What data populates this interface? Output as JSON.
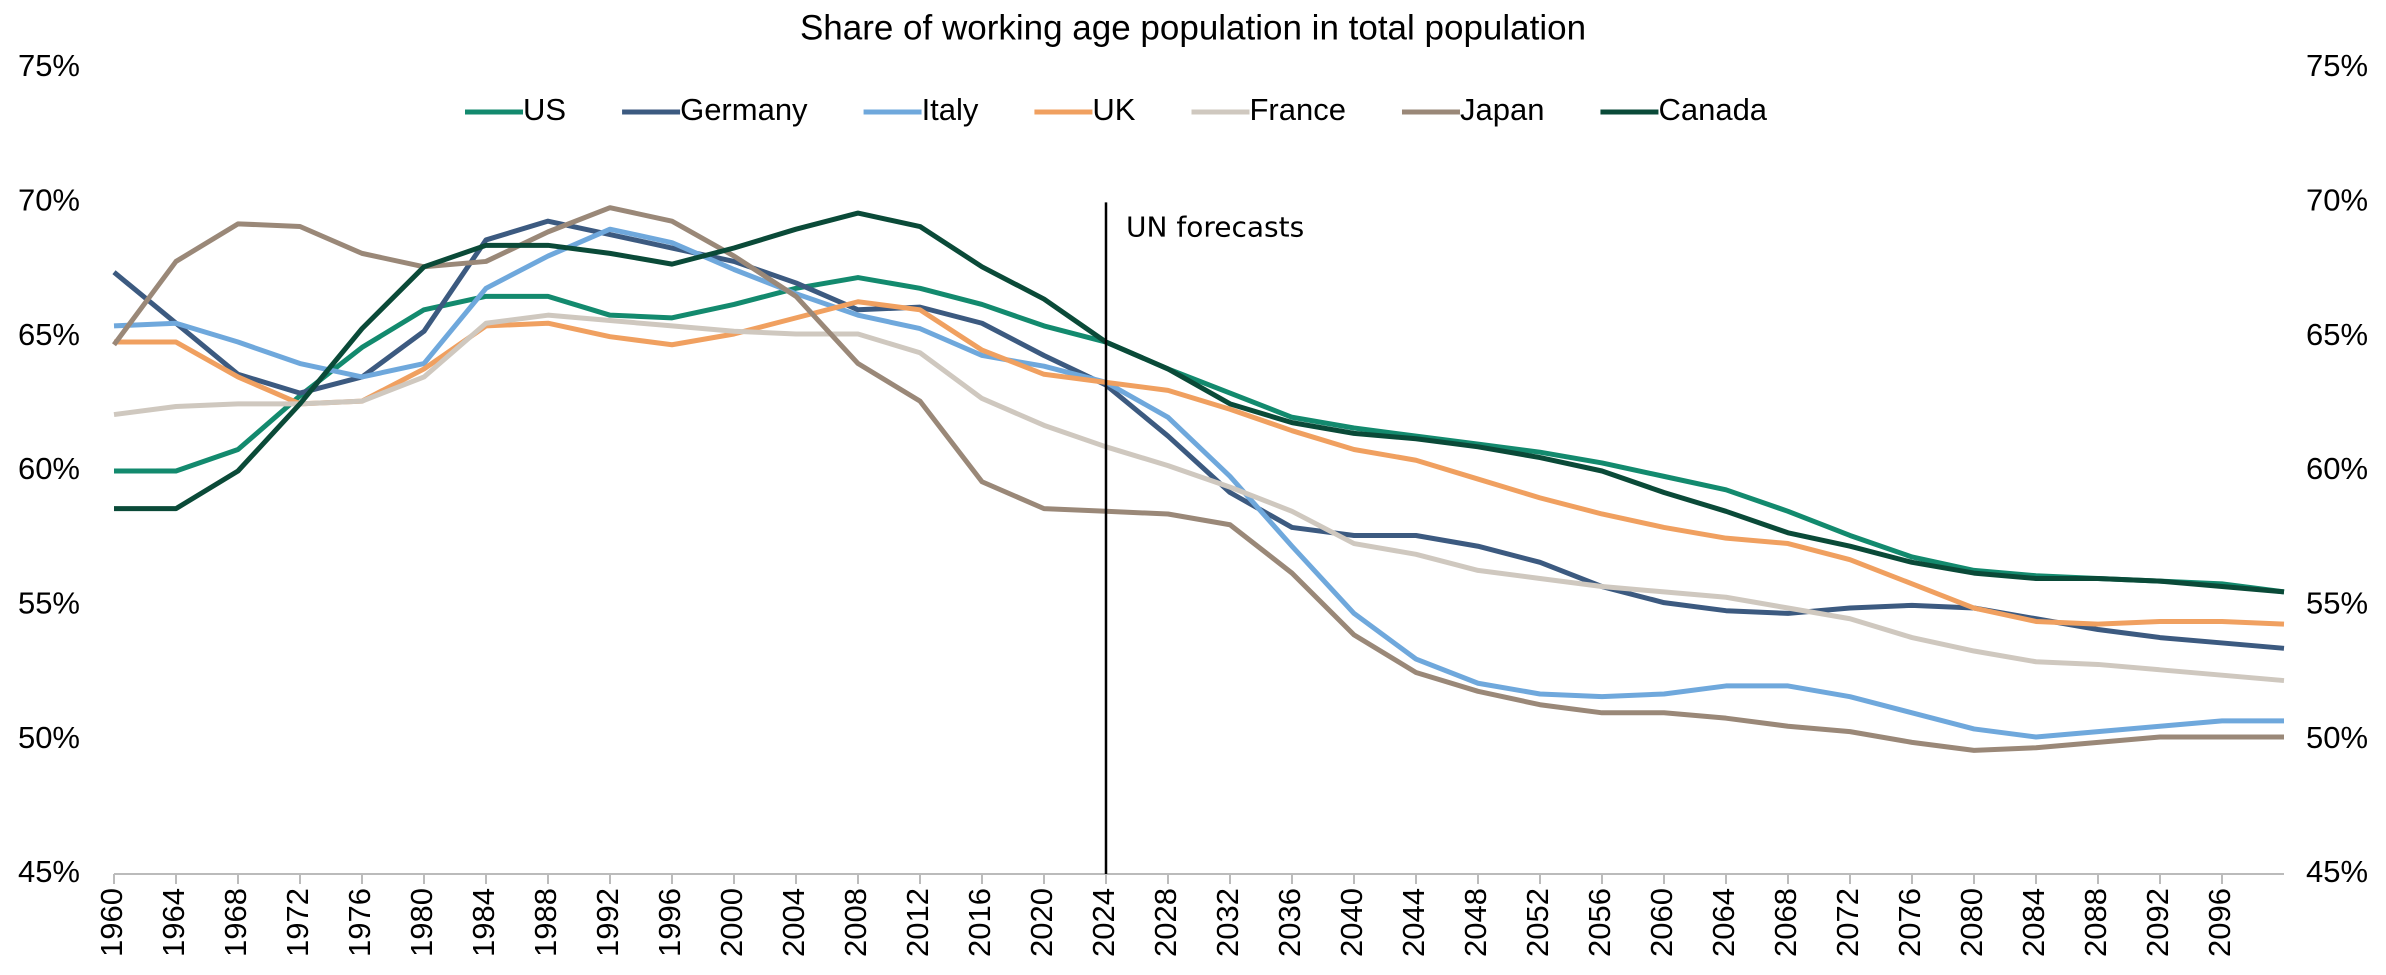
{
  "chart_data": {
    "type": "line",
    "title": "Share of working age population in total population",
    "x": [
      1960,
      1964,
      1968,
      1972,
      1976,
      1980,
      1984,
      1988,
      1992,
      1996,
      2000,
      2004,
      2008,
      2012,
      2016,
      2020,
      2024,
      2028,
      2032,
      2036,
      2040,
      2044,
      2048,
      2052,
      2056,
      2060,
      2064,
      2068,
      2072,
      2076,
      2080,
      2084,
      2088,
      2092,
      2096,
      2100
    ],
    "xlim": [
      1960,
      2100
    ],
    "xticks": [
      1960,
      1964,
      1968,
      1972,
      1976,
      1980,
      1984,
      1988,
      1992,
      1996,
      2000,
      2004,
      2008,
      2012,
      2016,
      2020,
      2024,
      2028,
      2032,
      2036,
      2040,
      2044,
      2048,
      2052,
      2056,
      2060,
      2064,
      2068,
      2072,
      2076,
      2080,
      2084,
      2088,
      2092,
      2096
    ],
    "ylim": [
      45,
      75
    ],
    "yticks": [
      {
        "value": 45,
        "label": "45%"
      },
      {
        "value": 50,
        "label": "50%"
      },
      {
        "value": 55,
        "label": "55%"
      },
      {
        "value": 60,
        "label": "60%"
      },
      {
        "value": 65,
        "label": "65%"
      },
      {
        "value": 70,
        "label": "70%"
      },
      {
        "value": 75,
        "label": "75%"
      }
    ],
    "y2lim": [
      45,
      75
    ],
    "y2ticks": [
      {
        "value": 45,
        "label": "45%"
      },
      {
        "value": 50,
        "label": "50%"
      },
      {
        "value": 55,
        "label": "55%"
      },
      {
        "value": 60,
        "label": "60%"
      },
      {
        "value": 65,
        "label": "65%"
      },
      {
        "value": 70,
        "label": "70%"
      },
      {
        "value": 75,
        "label": "75%"
      }
    ],
    "legend": "top",
    "annotations": [
      {
        "text": "UN forecasts",
        "x": 2024,
        "y": 70
      }
    ],
    "series": [
      {
        "name": "US",
        "color": "#138a6e",
        "values": [
          60.0,
          60.0,
          60.8,
          62.8,
          64.6,
          66.0,
          66.5,
          66.5,
          65.8,
          65.7,
          66.2,
          66.8,
          67.2,
          66.8,
          66.2,
          65.4,
          64.8,
          63.8,
          62.9,
          62.0,
          61.6,
          61.3,
          61.0,
          60.7,
          60.3,
          59.8,
          59.3,
          58.5,
          57.6,
          56.8,
          56.3,
          56.1,
          56.0,
          55.9,
          55.8,
          55.5
        ]
      },
      {
        "name": "Germany",
        "color": "#3c5a80",
        "values": [
          67.4,
          65.5,
          63.6,
          62.9,
          63.5,
          65.2,
          68.6,
          69.3,
          68.8,
          68.3,
          67.8,
          67.0,
          66.0,
          66.1,
          65.5,
          64.3,
          63.2,
          61.3,
          59.2,
          57.9,
          57.6,
          57.6,
          57.2,
          56.6,
          55.7,
          55.1,
          54.8,
          54.7,
          54.9,
          55.0,
          54.9,
          54.5,
          54.1,
          53.8,
          53.6,
          53.4
        ]
      },
      {
        "name": "Italy",
        "color": "#6fa8dc",
        "values": [
          65.4,
          65.5,
          64.8,
          64.0,
          63.5,
          64.0,
          66.8,
          68.0,
          69.0,
          68.5,
          67.5,
          66.6,
          65.8,
          65.3,
          64.3,
          63.9,
          63.3,
          62.0,
          59.8,
          57.2,
          54.7,
          53.0,
          52.1,
          51.7,
          51.6,
          51.7,
          52.0,
          52.0,
          51.6,
          51.0,
          50.4,
          50.1,
          50.3,
          50.5,
          50.7,
          50.7
        ]
      },
      {
        "name": "UK",
        "color": "#f0a060",
        "values": [
          64.8,
          64.8,
          63.5,
          62.5,
          62.6,
          63.8,
          65.4,
          65.5,
          65.0,
          64.7,
          65.1,
          65.7,
          66.3,
          66.0,
          64.5,
          63.6,
          63.3,
          63.0,
          62.3,
          61.5,
          60.8,
          60.4,
          59.7,
          59.0,
          58.4,
          57.9,
          57.5,
          57.3,
          56.7,
          55.8,
          54.9,
          54.4,
          54.3,
          54.4,
          54.4,
          54.3
        ]
      },
      {
        "name": "France",
        "color": "#cfc8bf",
        "values": [
          62.1,
          62.4,
          62.5,
          62.5,
          62.6,
          63.5,
          65.5,
          65.8,
          65.6,
          65.4,
          65.2,
          65.1,
          65.1,
          64.4,
          62.7,
          61.7,
          60.9,
          60.2,
          59.4,
          58.5,
          57.3,
          56.9,
          56.3,
          56.0,
          55.7,
          55.5,
          55.3,
          54.9,
          54.5,
          53.8,
          53.3,
          52.9,
          52.8,
          52.6,
          52.4,
          52.2
        ]
      },
      {
        "name": "Japan",
        "color": "#9a8878",
        "values": [
          64.7,
          67.8,
          69.2,
          69.1,
          68.1,
          67.6,
          67.8,
          68.9,
          69.8,
          69.3,
          68.0,
          66.5,
          64.0,
          62.6,
          59.6,
          58.6,
          58.5,
          58.4,
          58.0,
          56.2,
          53.9,
          52.5,
          51.8,
          51.3,
          51.0,
          51.0,
          50.8,
          50.5,
          50.3,
          49.9,
          49.6,
          49.7,
          49.9,
          50.1,
          50.1,
          50.1
        ]
      },
      {
        "name": "Canada",
        "color": "#0a4a38",
        "values": [
          58.6,
          58.6,
          60.0,
          62.5,
          65.3,
          67.6,
          68.4,
          68.4,
          68.1,
          67.7,
          68.3,
          69.0,
          69.6,
          69.1,
          67.6,
          66.4,
          64.8,
          63.8,
          62.5,
          61.8,
          61.4,
          61.2,
          60.9,
          60.5,
          60.0,
          59.2,
          58.5,
          57.7,
          57.2,
          56.6,
          56.2,
          56.0,
          56.0,
          55.9,
          55.7,
          55.5
        ]
      }
    ]
  }
}
